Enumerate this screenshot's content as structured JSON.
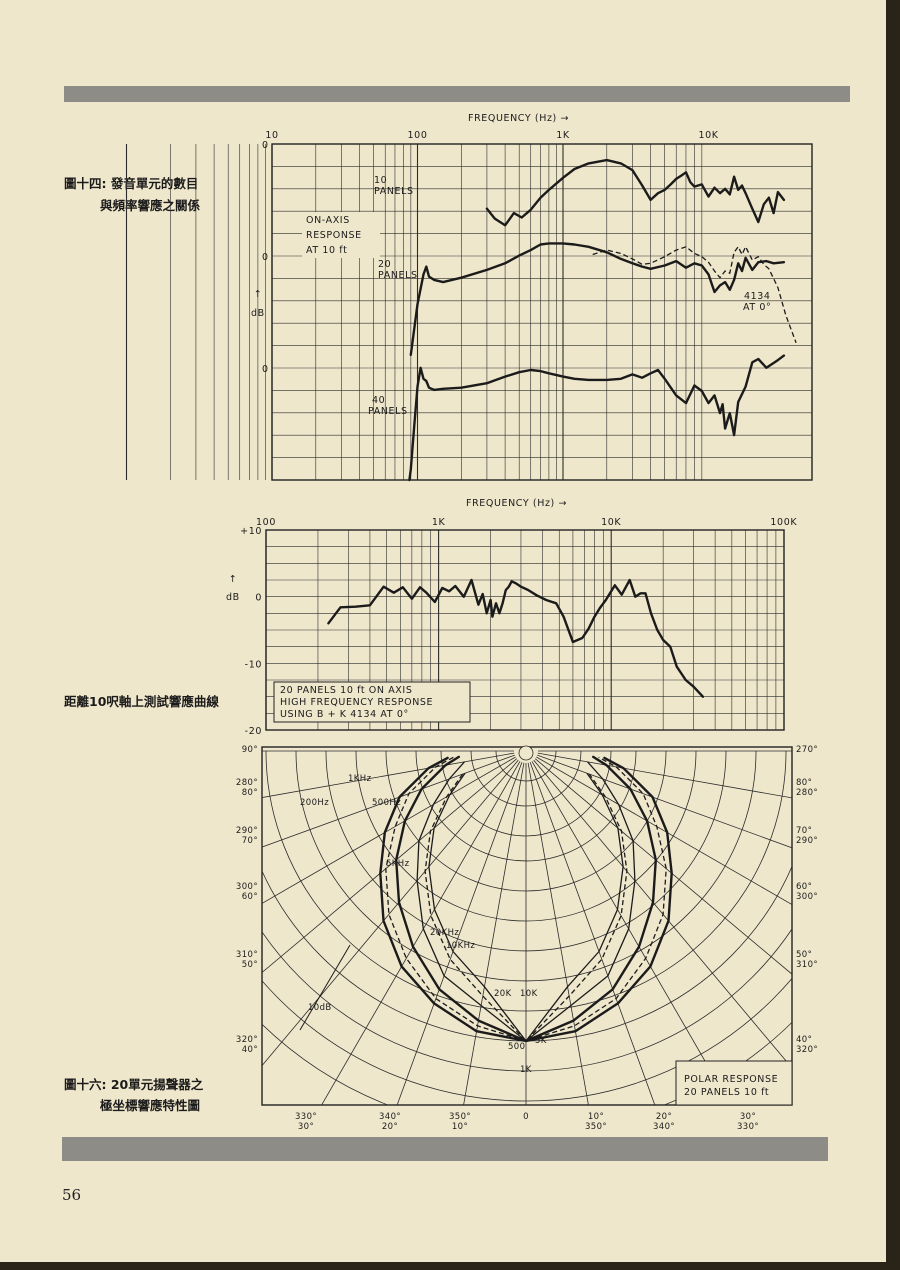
{
  "page_number": "56",
  "captions": {
    "fig14_line1": "圖十四: 發音單元的數目",
    "fig14_line2": "與頻率響應之關係",
    "fig15": "距離10呎軸上測試響應曲線",
    "fig16_line1": "圖十六: 20單元揚聲器之",
    "fig16_line2": "極坐標響應特性圖"
  },
  "chart_data": [
    {
      "type": "line",
      "x_axis_title": "FREQUENCY (Hz) →",
      "x_scale": "log",
      "xlim": [
        10,
        40000
      ],
      "x_ticks": [
        {
          "value": 10,
          "label": "10"
        },
        {
          "value": 100,
          "label": "100"
        },
        {
          "value": 1000,
          "label": "1K"
        },
        {
          "value": 10000,
          "label": "10K"
        }
      ],
      "y_axis_title": "dB",
      "y_arrow": "↑",
      "zero_labels": [
        "0",
        "0",
        "0"
      ],
      "annotation": [
        "ON-AXIS",
        "RESPONSE",
        "AT 10 ft"
      ],
      "series": [
        {
          "name_lines": [
            "10",
            "PANELS"
          ],
          "style": "solid",
          "panel": 0,
          "x": [
            300,
            340,
            400,
            460,
            520,
            600,
            700,
            800,
            1000,
            1200,
            1500,
            2000,
            2500,
            3000,
            3500,
            4000,
            4500,
            5000,
            5500,
            6000,
            6500,
            7000,
            7500,
            8000,
            9000,
            10000,
            11000,
            12000,
            13000,
            14000,
            15000,
            16000,
            17000,
            18000,
            20000,
            22000,
            24000,
            26000,
            28000,
            30000,
            33000
          ],
          "y": [
            -2.6,
            -3.5,
            -4.1,
            -3.0,
            -3.4,
            -2.7,
            -1.6,
            -0.9,
            0.2,
            1.0,
            1.5,
            1.8,
            1.5,
            0.9,
            -0.5,
            -1.8,
            -1.2,
            -0.9,
            -0.4,
            0.1,
            0.4,
            0.7,
            -0.2,
            -0.6,
            -0.4,
            -1.5,
            -0.7,
            -1.2,
            -0.8,
            -1.3,
            0.3,
            -0.9,
            -0.5,
            -1.2,
            -2.6,
            -3.8,
            -2.2,
            -1.6,
            -3.0,
            -1.1,
            -1.8
          ]
        },
        {
          "name_lines": [
            "20",
            "PANELS"
          ],
          "style": "solid",
          "panel": 1,
          "x": [
            90,
            100,
            110,
            115,
            120,
            130,
            150,
            200,
            300,
            400,
            500,
            600,
            700,
            800,
            1000,
            1200,
            1500,
            2000,
            2500,
            3000,
            3500,
            4000,
            5000,
            6000,
            7000,
            8000,
            9000,
            10000,
            11000,
            12000,
            13000,
            14000,
            15000,
            16000,
            17000,
            18000,
            20000,
            22000,
            25000,
            28000,
            33000
          ],
          "y": [
            -8.6,
            -4.0,
            -1.3,
            -0.6,
            -1.5,
            -1.8,
            -2.0,
            -1.6,
            -0.9,
            -0.3,
            0.4,
            0.9,
            1.4,
            1.5,
            1.5,
            1.4,
            1.2,
            0.7,
            0.1,
            -0.3,
            -0.6,
            -0.8,
            -0.5,
            -0.1,
            -0.7,
            -0.3,
            -0.5,
            -1.3,
            -2.9,
            -2.3,
            -2.0,
            -2.7,
            -1.8,
            -0.3,
            -1.0,
            0.2,
            -0.9,
            -0.2,
            -0.1,
            -0.3,
            -0.2
          ]
        },
        {
          "name_lines": [
            "4134",
            "AT 0°"
          ],
          "style": "dashed",
          "panel": 1,
          "x": [
            1600,
            2000,
            2500,
            3000,
            3500,
            4000,
            5000,
            6000,
            7000,
            8000,
            9000,
            10000,
            11000,
            12000,
            13000,
            14000,
            15000,
            16000,
            17000,
            18000,
            20000,
            22000,
            24000,
            26000,
            30000,
            34000,
            40000
          ],
          "y": [
            0.5,
            0.9,
            0.6,
            0.1,
            -0.4,
            -0.3,
            0.3,
            0.9,
            1.2,
            0.6,
            0.3,
            -0.2,
            -1.0,
            -1.6,
            -1.0,
            -1.2,
            0.7,
            1.2,
            0.5,
            1.2,
            0.0,
            0.3,
            -0.4,
            -0.8,
            -2.5,
            -5.0,
            -7.5
          ]
        },
        {
          "name_lines": [
            "40",
            "PANELS"
          ],
          "style": "solid",
          "panel": 2,
          "x": [
            88,
            90,
            95,
            100,
            105,
            110,
            115,
            120,
            130,
            150,
            200,
            300,
            400,
            500,
            600,
            700,
            800,
            1000,
            1200,
            1500,
            2000,
            2500,
            3000,
            3500,
            4000,
            4500,
            5000,
            6000,
            7000,
            8000,
            9000,
            10000,
            11000,
            12000,
            12500,
            13000,
            14000,
            15000,
            16000,
            18000,
            20000,
            22000,
            25000,
            30000,
            33000
          ],
          "y": [
            -10.0,
            -9.0,
            -5.0,
            -1.5,
            0.2,
            -0.8,
            -1.0,
            -1.6,
            -1.8,
            -1.7,
            -1.6,
            -1.2,
            -0.6,
            -0.2,
            0.0,
            -0.1,
            -0.3,
            -0.6,
            -0.8,
            -0.9,
            -0.9,
            -0.8,
            -0.4,
            -0.7,
            -0.3,
            0.0,
            -0.8,
            -2.3,
            -3.0,
            -1.4,
            -1.9,
            -3.0,
            -2.3,
            -3.9,
            -3.1,
            -5.3,
            -3.9,
            -5.9,
            -2.9,
            -1.5,
            0.7,
            1.0,
            0.2,
            0.9,
            1.3
          ]
        }
      ]
    },
    {
      "type": "line",
      "x_axis_title": "FREQUENCY (Hz) →",
      "x_scale": "log",
      "xlim": [
        100,
        100000
      ],
      "x_ticks": [
        {
          "value": 100,
          "label": "100"
        },
        {
          "value": 1000,
          "label": "1K"
        },
        {
          "value": 10000,
          "label": "10K"
        },
        {
          "value": 100000,
          "label": "100K"
        }
      ],
      "y_axis_title": "dB",
      "y_arrow": "↑",
      "ylim": [
        -20,
        10
      ],
      "y_ticks": [
        {
          "value": 10,
          "label": "+10"
        },
        {
          "value": 0,
          "label": "0"
        },
        {
          "value": -10,
          "label": "-10"
        },
        {
          "value": -20,
          "label": "-20"
        }
      ],
      "legend_lines": [
        "20 PANELS 10 ft ON AXIS",
        "HIGH FREQUENCY RESPONSE",
        "USING B + K 4134 AT 0°"
      ],
      "series": [
        {
          "x": [
            230,
            270,
            330,
            400,
            480,
            550,
            620,
            700,
            780,
            850,
            950,
            1050,
            1150,
            1250,
            1400,
            1550,
            1700,
            1800,
            1900,
            2000,
            2050,
            2150,
            2250,
            2350,
            2450,
            2550,
            2650,
            2800,
            3000,
            3300,
            3700,
            4200,
            4800,
            5300,
            6000,
            6800,
            7400,
            8000,
            8600,
            9300,
            10500,
            11500,
            12800,
            13800,
            14800,
            15800,
            17000,
            18500,
            20000,
            22000,
            24000,
            27000,
            30000,
            34000
          ],
          "y": [
            -4.0,
            -1.6,
            -1.5,
            -1.3,
            1.5,
            0.6,
            1.4,
            -0.3,
            1.4,
            0.6,
            -0.8,
            1.3,
            0.8,
            1.6,
            0.0,
            2.5,
            -1.2,
            0.4,
            -2.5,
            -0.5,
            -3.0,
            -1.0,
            -2.5,
            -1.0,
            1.0,
            1.5,
            2.3,
            2.0,
            1.5,
            1.0,
            0.2,
            -0.5,
            -1.0,
            -3.0,
            -6.8,
            -6.2,
            -4.8,
            -3.0,
            -1.7,
            -0.5,
            1.7,
            0.3,
            2.5,
            0.0,
            0.5,
            0.5,
            -2.5,
            -5.0,
            -6.5,
            -7.5,
            -10.5,
            -12.5,
            -13.5,
            -15.0
          ]
        }
      ]
    },
    {
      "type": "polar",
      "left_angle_labels": [
        [
          "90°"
        ],
        [
          "280°",
          "80°"
        ],
        [
          "290°",
          "70°"
        ],
        [
          "300°",
          "60°"
        ],
        [
          "310°",
          "50°"
        ],
        [
          "320°",
          "40°"
        ]
      ],
      "right_angle_labels": [
        [
          "270°"
        ],
        [
          "80°",
          "280°"
        ],
        [
          "70°",
          "290°"
        ],
        [
          "60°",
          "300°"
        ],
        [
          "50°",
          "310°"
        ],
        [
          "40°",
          "320°"
        ]
      ],
      "bottom_angle_labels": [
        [
          "330°",
          "30°"
        ],
        [
          "340°",
          "20°"
        ],
        [
          "350°",
          "10°"
        ],
        [
          "0"
        ],
        [
          "10°",
          "350°"
        ],
        [
          "20°",
          "340°"
        ],
        [
          "30°",
          "330°"
        ]
      ],
      "curve_labels": [
        "1KHz",
        "200Hz",
        "500Hz",
        "5KHz",
        "20KHz",
        "10KHz",
        "20K",
        "10K",
        "5K",
        "500",
        "1K"
      ],
      "scale_label": "10dB",
      "legend_lines": [
        "POLAR RESPONSE",
        "20 PANELS 10 ft"
      ],
      "radial_levels_db": [
        0,
        -10,
        -20,
        -30,
        -40
      ],
      "series": [
        {
          "name": "200Hz",
          "style": "solid-thick",
          "angles_deg": [
            0,
            10,
            20,
            30,
            40,
            50,
            60,
            70,
            80,
            85
          ],
          "level_db": [
            0,
            -0.5,
            -2,
            -4,
            -7,
            -11,
            -15,
            -20,
            -28,
            -34
          ]
        },
        {
          "name": "500Hz",
          "style": "dashed",
          "angles_deg": [
            0,
            10,
            20,
            30,
            40,
            50,
            60,
            70,
            80,
            85
          ],
          "level_db": [
            0,
            -1,
            -2.5,
            -5,
            -8,
            -12,
            -17,
            -22,
            -30,
            -36
          ]
        },
        {
          "name": "1KHz",
          "style": "solid-thick",
          "angles_deg": [
            0,
            10,
            20,
            30,
            40,
            50,
            60,
            70,
            80,
            85
          ],
          "level_db": [
            0,
            -1.5,
            -3.5,
            -6.5,
            -10,
            -14,
            -19,
            -25,
            -33,
            -38
          ]
        },
        {
          "name": "5KHz",
          "style": "thin",
          "angles_deg": [
            0,
            10,
            20,
            30,
            40,
            50,
            60,
            70,
            80
          ],
          "level_db": [
            0,
            -3,
            -5,
            -9,
            -14,
            -19,
            -26,
            -33,
            -40
          ]
        },
        {
          "name": "10KHz",
          "style": "dashed-thin",
          "angles_deg": [
            0,
            10,
            20,
            30,
            40,
            50,
            60,
            70
          ],
          "level_db": [
            0,
            -4,
            -7,
            -11,
            -16,
            -22,
            -30,
            -38
          ]
        },
        {
          "name": "20KHz",
          "style": "thin",
          "angles_deg": [
            0,
            10,
            20,
            30,
            40,
            50,
            60,
            70
          ],
          "level_db": [
            0,
            -5,
            -8,
            -12,
            -17,
            -23,
            -31,
            -39
          ]
        }
      ]
    }
  ]
}
